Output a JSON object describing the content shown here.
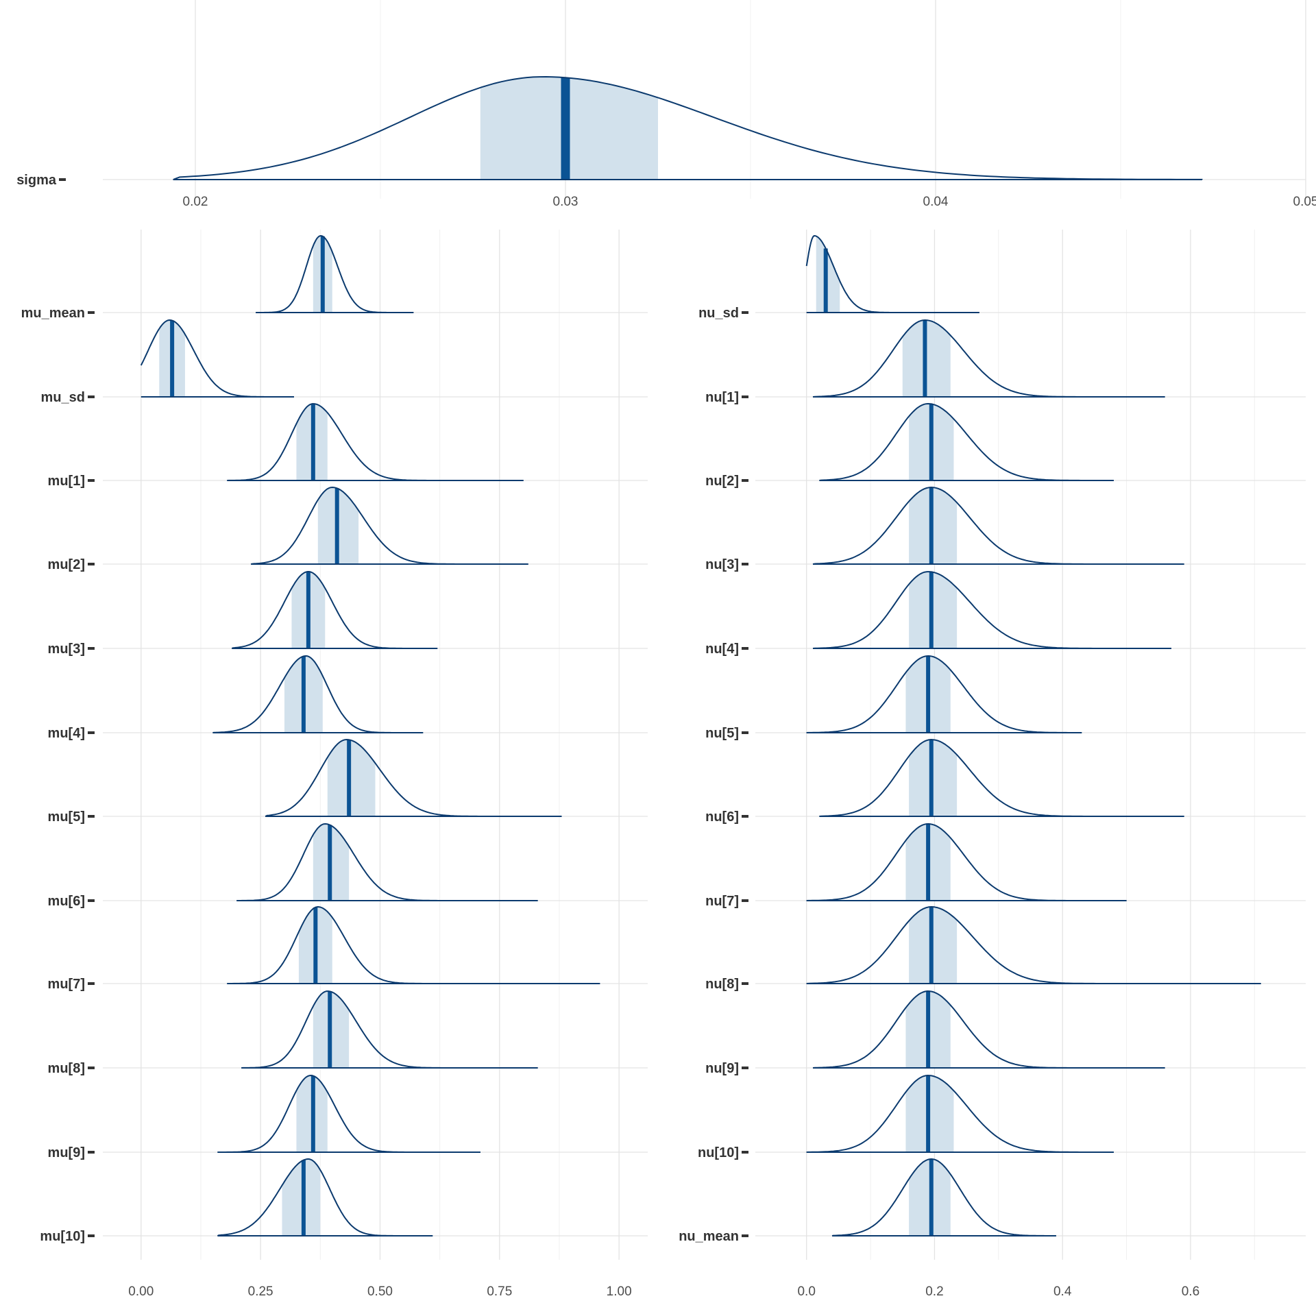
{
  "chart_data": [
    {
      "type": "area",
      "panel": "sigma",
      "xlim": [
        0.0175,
        0.05
      ],
      "x_ticks": [
        0.02,
        0.03,
        0.04,
        0.05
      ],
      "x_tick_labels": [
        "0.02",
        "0.03",
        "0.04",
        "0.05"
      ],
      "grid": true,
      "series": [
        {
          "name": "sigma",
          "min": 0.0194,
          "max": 0.0472,
          "mode": 0.0294,
          "median": 0.03,
          "ci_low": 0.0277,
          "ci_high": 0.0325,
          "sd_left": 0.0036,
          "sd_right": 0.0046
        }
      ]
    },
    {
      "type": "area",
      "panel": "mu",
      "xlim": [
        -0.08,
        1.06
      ],
      "x_ticks": [
        0.0,
        0.25,
        0.5,
        0.75,
        1.0
      ],
      "x_tick_labels": [
        "0.00",
        "0.25",
        "0.50",
        "0.75",
        "1.00"
      ],
      "grid": true,
      "series": [
        {
          "name": "mu_mean",
          "min": 0.24,
          "max": 0.57,
          "mode": 0.376,
          "median": 0.38,
          "ci_low": 0.36,
          "ci_high": 0.4,
          "sd_left": 0.03,
          "sd_right": 0.035
        },
        {
          "name": "mu_sd",
          "min": 0.0,
          "max": 0.32,
          "mode": 0.06,
          "median": 0.065,
          "ci_low": 0.038,
          "ci_high": 0.092,
          "sd_left": 0.045,
          "sd_right": 0.05,
          "boundary": 0.0
        },
        {
          "name": "mu[1]",
          "min": 0.18,
          "max": 0.8,
          "mode": 0.36,
          "median": 0.36,
          "ci_low": 0.325,
          "ci_high": 0.39,
          "sd_left": 0.045,
          "sd_right": 0.06
        },
        {
          "name": "mu[2]",
          "min": 0.23,
          "max": 0.81,
          "mode": 0.4,
          "median": 0.41,
          "ci_low": 0.37,
          "ci_high": 0.455,
          "sd_left": 0.05,
          "sd_right": 0.065
        },
        {
          "name": "mu[3]",
          "min": 0.19,
          "max": 0.62,
          "mode": 0.35,
          "median": 0.35,
          "ci_low": 0.315,
          "ci_high": 0.385,
          "sd_left": 0.05,
          "sd_right": 0.05
        },
        {
          "name": "mu[4]",
          "min": 0.15,
          "max": 0.59,
          "mode": 0.345,
          "median": 0.34,
          "ci_low": 0.3,
          "ci_high": 0.38,
          "sd_left": 0.055,
          "sd_right": 0.045
        },
        {
          "name": "mu[5]",
          "min": 0.26,
          "max": 0.88,
          "mode": 0.43,
          "median": 0.435,
          "ci_low": 0.39,
          "ci_high": 0.49,
          "sd_left": 0.055,
          "sd_right": 0.07
        },
        {
          "name": "mu[6]",
          "min": 0.2,
          "max": 0.83,
          "mode": 0.385,
          "median": 0.395,
          "ci_low": 0.36,
          "ci_high": 0.435,
          "sd_left": 0.045,
          "sd_right": 0.06
        },
        {
          "name": "mu[7]",
          "min": 0.18,
          "max": 0.96,
          "mode": 0.37,
          "median": 0.365,
          "ci_low": 0.33,
          "ci_high": 0.4,
          "sd_left": 0.045,
          "sd_right": 0.055
        },
        {
          "name": "mu[8]",
          "min": 0.21,
          "max": 0.83,
          "mode": 0.39,
          "median": 0.395,
          "ci_low": 0.36,
          "ci_high": 0.435,
          "sd_left": 0.045,
          "sd_right": 0.06
        },
        {
          "name": "mu[9]",
          "min": 0.16,
          "max": 0.71,
          "mode": 0.355,
          "median": 0.36,
          "ci_low": 0.325,
          "ci_high": 0.39,
          "sd_left": 0.045,
          "sd_right": 0.05
        },
        {
          "name": "mu[10]",
          "min": 0.16,
          "max": 0.61,
          "mode": 0.35,
          "median": 0.34,
          "ci_low": 0.295,
          "ci_high": 0.375,
          "sd_left": 0.06,
          "sd_right": 0.045
        }
      ]
    },
    {
      "type": "area",
      "panel": "nu",
      "xlim": [
        -0.08,
        0.78
      ],
      "x_ticks": [
        0.0,
        0.2,
        0.4,
        0.6
      ],
      "x_tick_labels": [
        "0.0",
        "0.2",
        "0.4",
        "0.6"
      ],
      "grid": true,
      "series": [
        {
          "name": "nu_sd",
          "min": 0.0,
          "max": 0.27,
          "mode": 0.012,
          "median": 0.03,
          "ci_low": 0.015,
          "ci_high": 0.052,
          "sd_left": 0.012,
          "sd_right": 0.03,
          "boundary": 0.0
        },
        {
          "name": "nu[1]",
          "min": 0.01,
          "max": 0.56,
          "mode": 0.185,
          "median": 0.185,
          "ci_low": 0.15,
          "ci_high": 0.225,
          "sd_left": 0.05,
          "sd_right": 0.06
        },
        {
          "name": "nu[2]",
          "min": 0.02,
          "max": 0.48,
          "mode": 0.19,
          "median": 0.195,
          "ci_low": 0.16,
          "ci_high": 0.23,
          "sd_left": 0.05,
          "sd_right": 0.06
        },
        {
          "name": "nu[3]",
          "min": 0.01,
          "max": 0.59,
          "mode": 0.195,
          "median": 0.195,
          "ci_low": 0.16,
          "ci_high": 0.235,
          "sd_left": 0.055,
          "sd_right": 0.06
        },
        {
          "name": "nu[4]",
          "min": 0.01,
          "max": 0.57,
          "mode": 0.19,
          "median": 0.195,
          "ci_low": 0.16,
          "ci_high": 0.235,
          "sd_left": 0.05,
          "sd_right": 0.065
        },
        {
          "name": "nu[5]",
          "min": 0.0,
          "max": 0.43,
          "mode": 0.19,
          "median": 0.19,
          "ci_low": 0.155,
          "ci_high": 0.225,
          "sd_left": 0.05,
          "sd_right": 0.055
        },
        {
          "name": "nu[6]",
          "min": 0.02,
          "max": 0.59,
          "mode": 0.195,
          "median": 0.195,
          "ci_low": 0.16,
          "ci_high": 0.235,
          "sd_left": 0.05,
          "sd_right": 0.06
        },
        {
          "name": "nu[7]",
          "min": 0.0,
          "max": 0.5,
          "mode": 0.19,
          "median": 0.19,
          "ci_low": 0.155,
          "ci_high": 0.225,
          "sd_left": 0.05,
          "sd_right": 0.055
        },
        {
          "name": "nu[8]",
          "min": 0.0,
          "max": 0.71,
          "mode": 0.195,
          "median": 0.195,
          "ci_low": 0.16,
          "ci_high": 0.235,
          "sd_left": 0.055,
          "sd_right": 0.065
        },
        {
          "name": "nu[9]",
          "min": 0.01,
          "max": 0.56,
          "mode": 0.19,
          "median": 0.19,
          "ci_low": 0.155,
          "ci_high": 0.225,
          "sd_left": 0.05,
          "sd_right": 0.055
        },
        {
          "name": "nu[10]",
          "min": 0.0,
          "max": 0.48,
          "mode": 0.19,
          "median": 0.19,
          "ci_low": 0.155,
          "ci_high": 0.23,
          "sd_left": 0.05,
          "sd_right": 0.06
        },
        {
          "name": "nu_mean",
          "min": 0.04,
          "max": 0.39,
          "mode": 0.195,
          "median": 0.195,
          "ci_low": 0.16,
          "ci_high": 0.225,
          "sd_left": 0.045,
          "sd_right": 0.045
        }
      ]
    }
  ]
}
